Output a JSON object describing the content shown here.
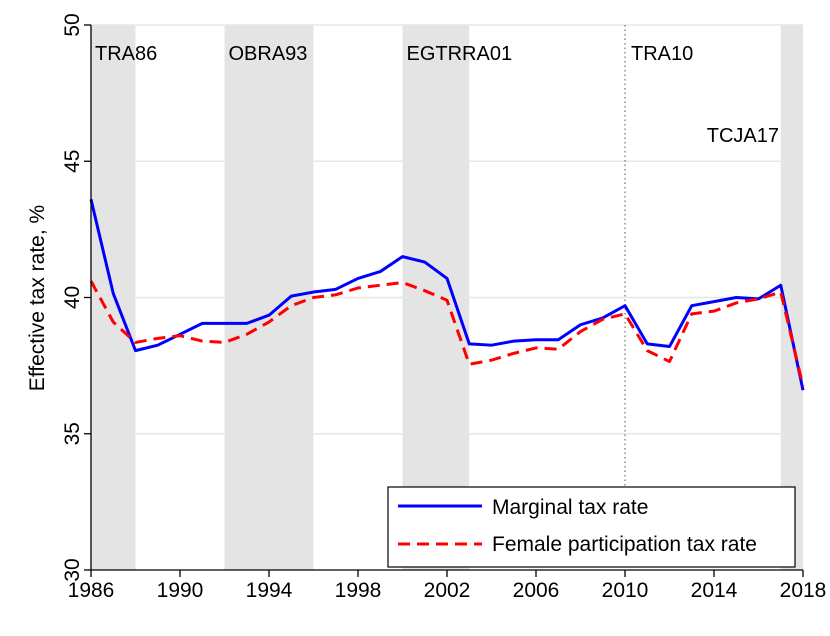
{
  "chart_data": {
    "type": "line",
    "title": "",
    "xlabel": "",
    "ylabel": "Effective tax rate, %",
    "xlim": [
      1986,
      2018
    ],
    "ylim": [
      30,
      50
    ],
    "xticks": [
      1986,
      1990,
      1994,
      1998,
      2002,
      2006,
      2010,
      2014,
      2018
    ],
    "yticks": [
      30,
      35,
      40,
      45,
      50
    ],
    "grid": "horizontal",
    "legend_position": "bottom-right",
    "shaded_periods": [
      {
        "label": "TRA86",
        "start": 1986,
        "end": 1988
      },
      {
        "label": "OBRA93",
        "start": 1992,
        "end": 1996
      },
      {
        "label": "EGTRRA01",
        "start": 2000,
        "end": 2003
      },
      {
        "label": "TCJA17",
        "start": 2017,
        "end": 2018
      }
    ],
    "vertical_lines": [
      {
        "label": "TRA10",
        "x": 2010
      }
    ],
    "x": [
      1986,
      1987,
      1988,
      1989,
      1990,
      1991,
      1992,
      1993,
      1994,
      1995,
      1996,
      1997,
      1998,
      1999,
      2000,
      2001,
      2002,
      2003,
      2004,
      2005,
      2006,
      2007,
      2008,
      2009,
      2010,
      2011,
      2012,
      2013,
      2014,
      2015,
      2016,
      2017,
      2018
    ],
    "series": [
      {
        "name": "Marginal tax rate",
        "color": "#0000ff",
        "style": "solid",
        "values": [
          43.6,
          40.15,
          38.05,
          38.25,
          38.65,
          39.05,
          39.05,
          39.05,
          39.35,
          40.05,
          40.2,
          40.3,
          40.7,
          40.95,
          41.5,
          41.3,
          40.7,
          38.3,
          38.25,
          38.4,
          38.45,
          38.45,
          39.0,
          39.25,
          39.7,
          38.3,
          38.2,
          39.7,
          39.85,
          40.0,
          39.95,
          40.45,
          36.6
        ]
      },
      {
        "name": "Female participation tax rate",
        "color": "#ff0000",
        "style": "dashed",
        "values": [
          40.6,
          39.1,
          38.35,
          38.5,
          38.6,
          38.4,
          38.35,
          38.65,
          39.1,
          39.7,
          40.0,
          40.1,
          40.35,
          40.45,
          40.55,
          40.25,
          39.9,
          37.55,
          37.7,
          37.95,
          38.15,
          38.1,
          38.75,
          39.2,
          39.4,
          38.05,
          37.65,
          39.4,
          39.5,
          39.8,
          39.95,
          40.2,
          36.75
        ]
      }
    ]
  }
}
